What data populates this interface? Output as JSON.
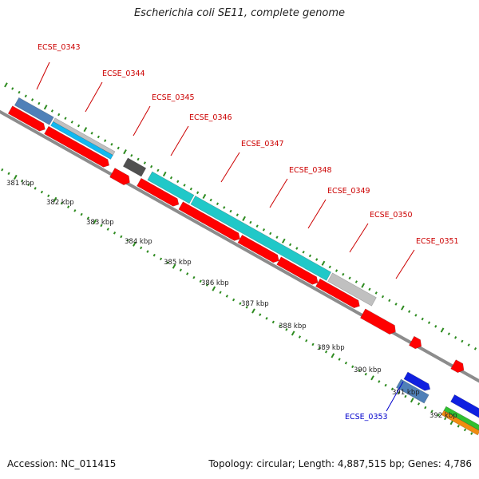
{
  "header": {
    "title": "Escherichia coli SE11, complete genome"
  },
  "footer": {
    "accession": "Accession: NC_011415",
    "summary": "Topology: circular; Length: 4,887,515 bp; Genes: 4,786"
  },
  "colors": {
    "backbone": "#8c8c8c",
    "tick": "#2e8b20",
    "label_red": "#cc0000",
    "label_blue": "#0000cc",
    "cds_red": "#ff0000",
    "steel_blue": "#4f80b8",
    "sky_blue": "#10b8f0",
    "cyan": "#20c8c8",
    "light_gray": "#c0c0c0",
    "dark_gray": "#505050",
    "blue": "#1020e0",
    "green": "#30c030",
    "orange": "#f08c10"
  },
  "kbp_labels": [
    "381 kbp",
    "382 kbp",
    "383 kbp",
    "384 kbp",
    "385 kbp",
    "386 kbp",
    "387 kbp",
    "388 kbp",
    "389 kbp",
    "390 kbp",
    "391 kbp",
    "392 kbp"
  ],
  "gene_labels": [
    "ECSE_0343",
    "ECSE_0344",
    "ECSE_0345",
    "ECSE_0346",
    "ECSE_0347",
    "ECSE_0348",
    "ECSE_0349",
    "ECSE_0350",
    "ECSE_0351",
    "ECSE_0353"
  ]
}
